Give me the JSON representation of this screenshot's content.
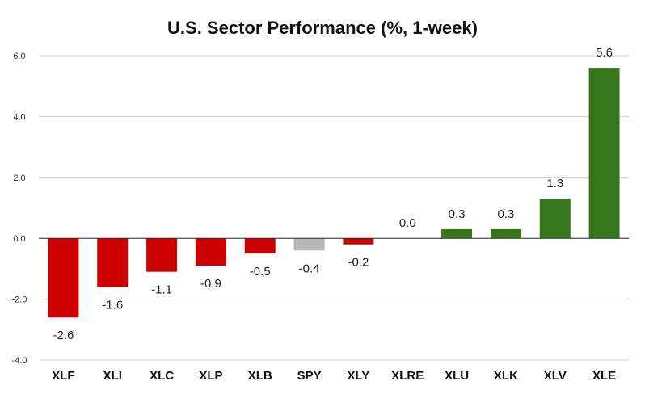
{
  "chart_data": {
    "type": "bar",
    "title": "U.S. Sector Performance (%, 1-week)",
    "xlabel": "",
    "ylabel": "",
    "ylim": [
      -4.0,
      6.0
    ],
    "yticks": [
      "6.0",
      "4.0",
      "2.0",
      "0.0",
      "-2.0",
      "-4.0"
    ],
    "ytick_values": [
      6,
      4,
      2,
      0,
      -2,
      -4
    ],
    "grid": true,
    "categories": [
      "XLF",
      "XLI",
      "XLC",
      "XLP",
      "XLB",
      "SPY",
      "XLY",
      "XLRE",
      "XLU",
      "XLK",
      "XLV",
      "XLE"
    ],
    "values": [
      -2.6,
      -1.6,
      -1.1,
      -0.9,
      -0.5,
      -0.4,
      -0.2,
      0.0,
      0.3,
      0.3,
      1.3,
      5.6
    ],
    "value_labels": [
      "-2.6",
      "-1.6",
      "-1.1",
      "-0.9",
      "-0.5",
      "-0.4",
      "-0.2",
      "0.0",
      "0.3",
      "0.3",
      "1.3",
      "5.6"
    ],
    "bar_colors": [
      "#cc0000",
      "#cc0000",
      "#cc0000",
      "#cc0000",
      "#cc0000",
      "#b7b7b7",
      "#cc0000",
      "#38761d",
      "#38761d",
      "#38761d",
      "#38761d",
      "#38761d"
    ],
    "colors": {
      "negative": "#cc0000",
      "positive": "#38761d",
      "benchmark": "#b7b7b7",
      "grid": "#cccccc",
      "axis": "#333333"
    }
  }
}
